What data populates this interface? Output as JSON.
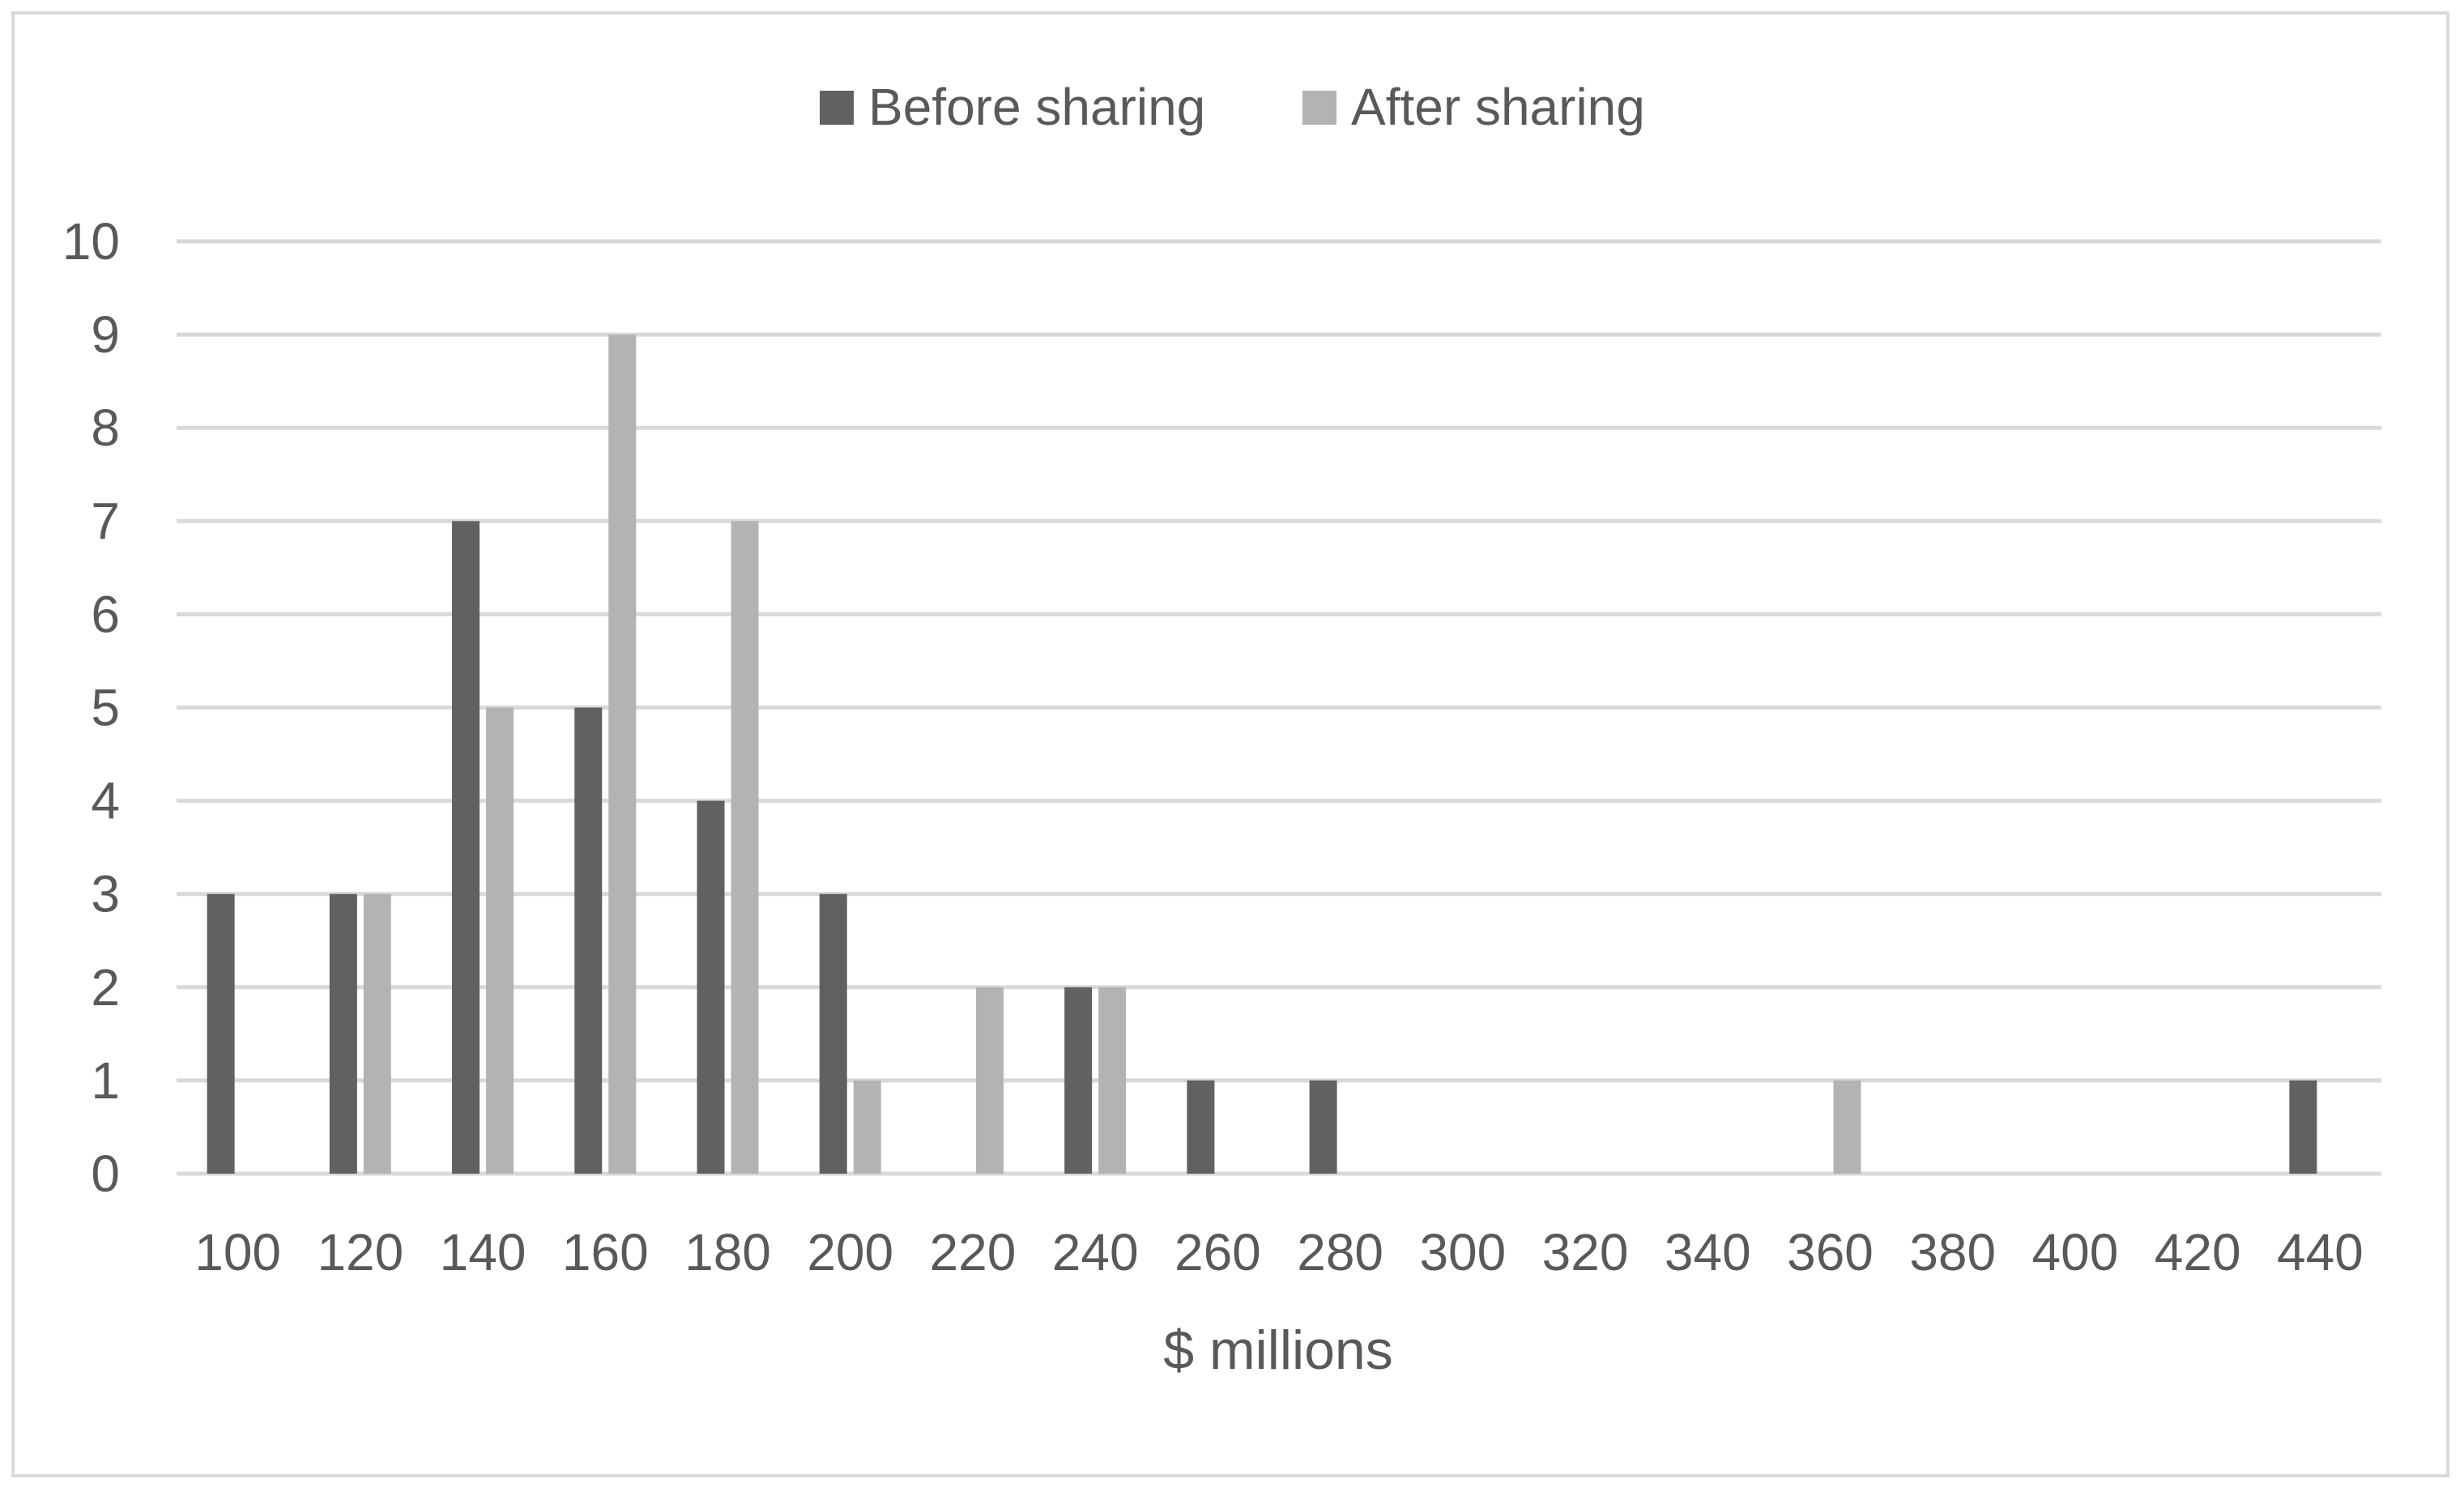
{
  "chart_data": {
    "type": "bar",
    "title": "",
    "xlabel": "$ millions",
    "ylabel": "",
    "ylim": [
      0,
      10
    ],
    "y_ticks": [
      "0",
      "1",
      "2",
      "3",
      "4",
      "5",
      "6",
      "7",
      "8",
      "9",
      "10"
    ],
    "grid": "horizontal",
    "legend_position": "top",
    "categories": [
      "100",
      "120",
      "140",
      "160",
      "180",
      "200",
      "220",
      "240",
      "260",
      "280",
      "300",
      "320",
      "340",
      "360",
      "380",
      "400",
      "420",
      "440"
    ],
    "series": [
      {
        "name": "Before sharing",
        "color": "#616161",
        "values": [
          3,
          3,
          7,
          5,
          4,
          3,
          0,
          2,
          1,
          1,
          0,
          0,
          0,
          0,
          0,
          0,
          0,
          1
        ]
      },
      {
        "name": "After sharing",
        "color": "#b3b3b3",
        "values": [
          0,
          3,
          5,
          9,
          7,
          1,
          2,
          2,
          0,
          0,
          0,
          0,
          0,
          1,
          0,
          0,
          0,
          0
        ]
      }
    ]
  }
}
